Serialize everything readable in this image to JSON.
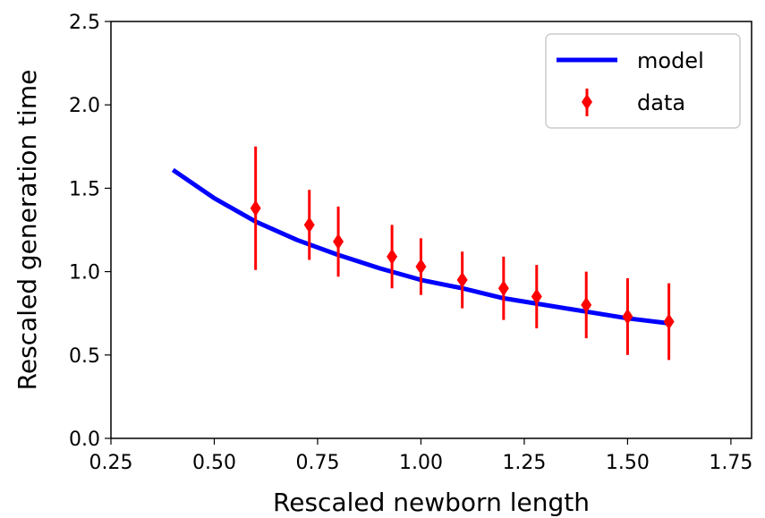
{
  "chart_data": {
    "type": "scatter",
    "xlabel": "Rescaled newborn length",
    "ylabel": "Rescaled generation time",
    "xlim": [
      0.25,
      1.8
    ],
    "ylim": [
      0.0,
      2.5
    ],
    "xticks": [
      "0.25",
      "0.50",
      "0.75",
      "1.00",
      "1.25",
      "1.50",
      "1.75"
    ],
    "yticks": [
      "0.0",
      "0.5",
      "1.0",
      "1.5",
      "2.0",
      "2.5"
    ],
    "grid": false,
    "legend": {
      "position": "top-right",
      "entries": [
        "model",
        "data"
      ]
    },
    "series": [
      {
        "name": "model",
        "style": "line",
        "color": "#0000ff",
        "x": [
          0.4,
          0.5,
          0.6,
          0.7,
          0.8,
          0.9,
          1.0,
          1.1,
          1.2,
          1.3,
          1.4,
          1.5,
          1.6
        ],
        "y": [
          1.61,
          1.44,
          1.3,
          1.19,
          1.1,
          1.02,
          0.95,
          0.9,
          0.84,
          0.8,
          0.76,
          0.72,
          0.69
        ]
      },
      {
        "name": "data",
        "style": "errorbar",
        "color": "#ff0000",
        "x": [
          0.6,
          0.73,
          0.8,
          0.93,
          1.0,
          1.1,
          1.2,
          1.28,
          1.4,
          1.5,
          1.6
        ],
        "y": [
          1.38,
          1.28,
          1.18,
          1.09,
          1.03,
          0.95,
          0.9,
          0.85,
          0.8,
          0.73,
          0.7
        ],
        "ylow": [
          1.01,
          1.07,
          0.97,
          0.9,
          0.86,
          0.78,
          0.71,
          0.66,
          0.6,
          0.5,
          0.47
        ],
        "yhigh": [
          1.75,
          1.49,
          1.39,
          1.28,
          1.2,
          1.12,
          1.09,
          1.04,
          1.0,
          0.96,
          0.93
        ]
      }
    ]
  }
}
